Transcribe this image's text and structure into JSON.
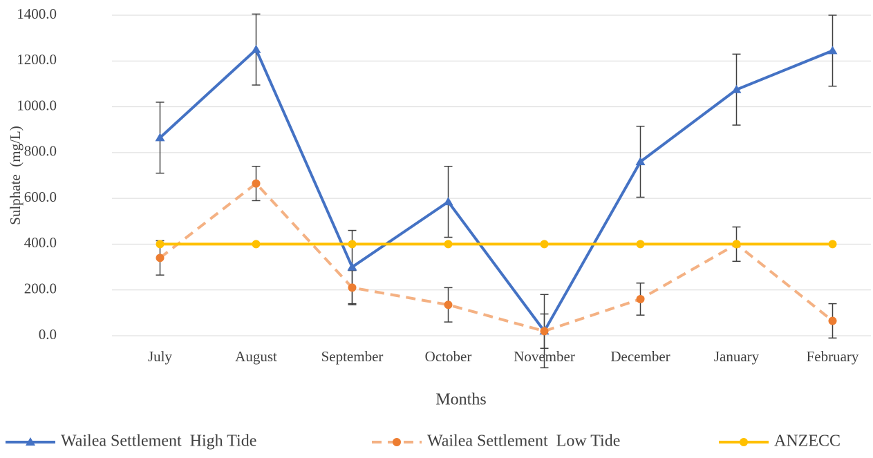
{
  "chart_data": {
    "type": "line",
    "x_label": "Months",
    "y_label": "Sulphate  (mg/L)",
    "categories": [
      "July",
      "August",
      "September",
      "October",
      "November",
      "December",
      "January",
      "February"
    ],
    "series": [
      {
        "name": "Wailea Settlement  High Tide",
        "color": "#4472c4",
        "marker": "triangle",
        "dashed": false,
        "values": [
          865,
          1250,
          300,
          585,
          20,
          760,
          1075,
          1245
        ],
        "errors": [
          155,
          155,
          160,
          155,
          160,
          155,
          155,
          155
        ]
      },
      {
        "name": "Wailea Settlement  Low Tide",
        "color": "#f4b183",
        "marker_color": "#ed7d31",
        "marker": "circle",
        "dashed": true,
        "values": [
          340,
          665,
          210,
          135,
          20,
          160,
          400,
          65
        ],
        "errors": [
          75,
          75,
          75,
          75,
          75,
          70,
          75,
          75
        ]
      },
      {
        "name": "ANZECC",
        "color": "#ffc000",
        "marker": "circle",
        "dashed": false,
        "values": [
          400,
          400,
          400,
          400,
          400,
          400,
          400,
          400
        ]
      }
    ],
    "ylim": [
      0,
      1400
    ],
    "yticks": [
      {
        "value": 0,
        "label": "0.0"
      },
      {
        "value": 200,
        "label": "200.0"
      },
      {
        "value": 400,
        "label": "400.0"
      },
      {
        "value": 600,
        "label": "600.0"
      },
      {
        "value": 800,
        "label": "800.0"
      },
      {
        "value": 1000,
        "label": "1000.0"
      },
      {
        "value": 1200,
        "label": "1200.0"
      },
      {
        "value": 1400,
        "label": "1400.0"
      }
    ],
    "grid": true,
    "legend": "bottom",
    "error_bar_color": "#404040"
  }
}
